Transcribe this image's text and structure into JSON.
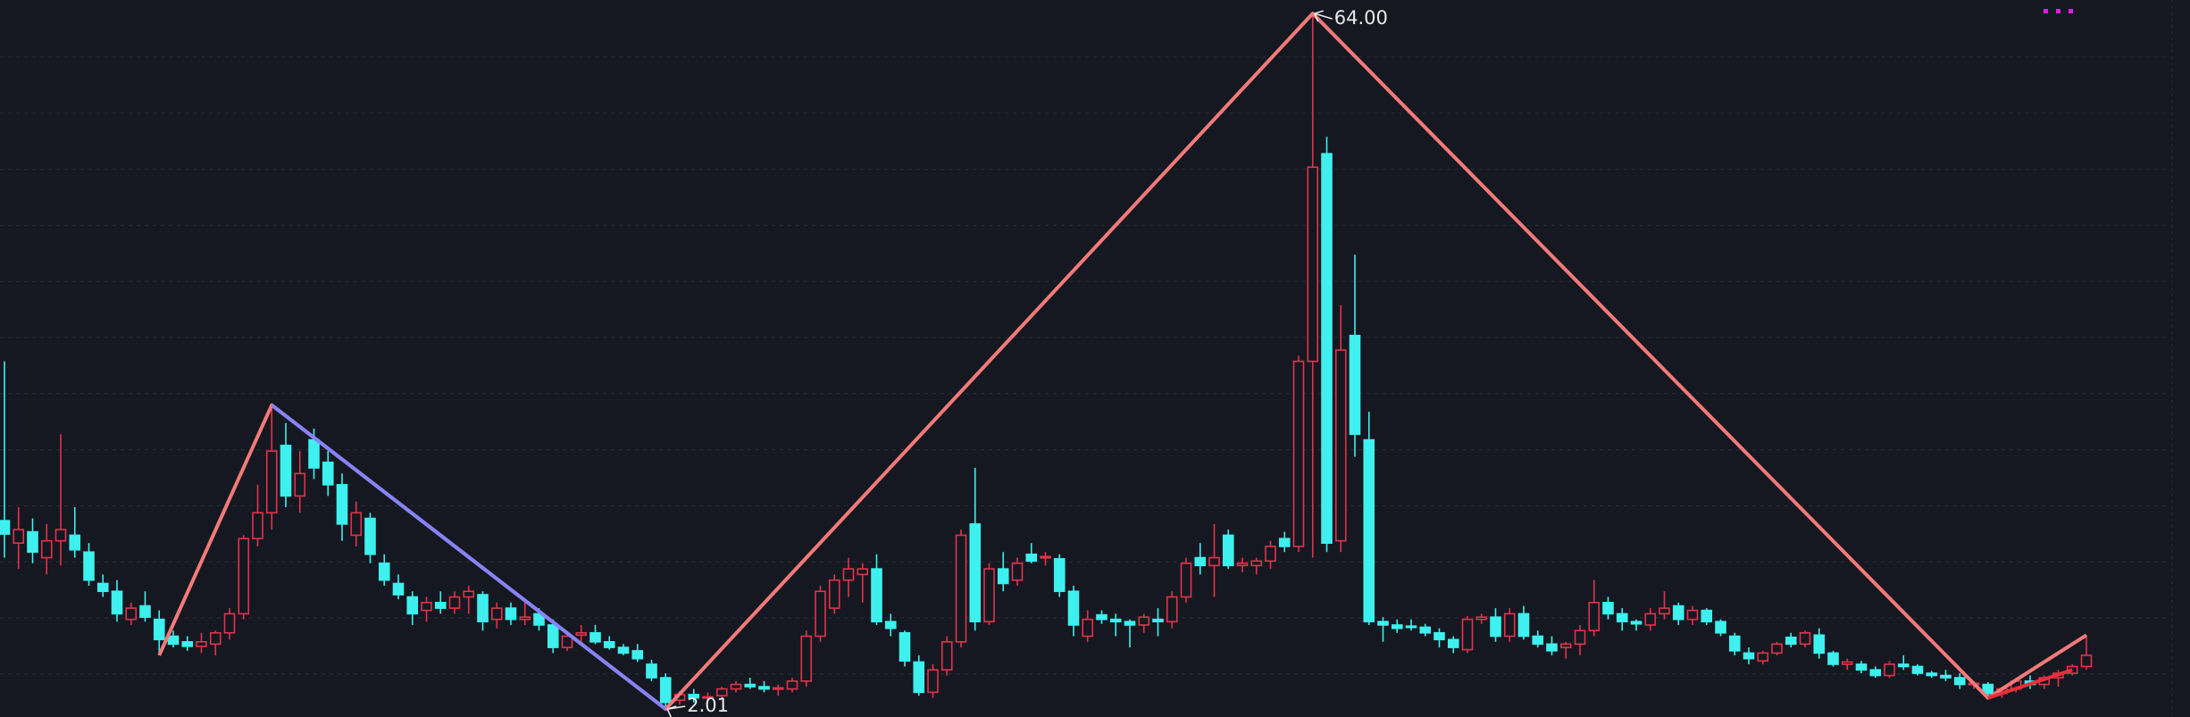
{
  "chart_data": {
    "type": "candlestick",
    "ylim": [
      1.3,
      65.2
    ],
    "up_color": "#e2334b",
    "down_color": "#3ef0ee",
    "candles": [
      [
        18.8,
        33.0,
        15.5,
        17.6
      ],
      [
        16.8,
        20.0,
        14.5,
        18.0
      ],
      [
        17.8,
        19.0,
        15.0,
        16.0
      ],
      [
        15.5,
        18.5,
        14.0,
        17.0
      ],
      [
        17.0,
        26.5,
        14.8,
        18.0
      ],
      [
        17.5,
        20.0,
        15.5,
        16.2
      ],
      [
        16.0,
        16.8,
        13.0,
        13.5
      ],
      [
        13.2,
        14.0,
        12.0,
        12.5
      ],
      [
        12.5,
        13.5,
        9.8,
        10.5
      ],
      [
        10.0,
        11.5,
        9.5,
        11.0
      ],
      [
        11.2,
        12.5,
        9.8,
        10.2
      ],
      [
        10.0,
        10.8,
        6.8,
        8.2
      ],
      [
        8.5,
        9.0,
        7.5,
        7.8
      ],
      [
        8.0,
        8.5,
        7.2,
        7.6
      ],
      [
        7.6,
        8.8,
        7.0,
        8.0
      ],
      [
        7.8,
        9.0,
        6.8,
        8.8
      ],
      [
        8.8,
        11.0,
        8.2,
        10.5
      ],
      [
        10.5,
        17.5,
        10.0,
        17.2
      ],
      [
        17.2,
        22.0,
        16.5,
        19.5
      ],
      [
        19.5,
        29.1,
        18.0,
        25.0
      ],
      [
        25.5,
        27.5,
        20.0,
        21.0
      ],
      [
        21.0,
        25.0,
        19.5,
        23.0
      ],
      [
        26.0,
        27.0,
        22.5,
        23.5
      ],
      [
        24.0,
        25.0,
        21.0,
        22.0
      ],
      [
        22.0,
        23.0,
        17.0,
        18.5
      ],
      [
        17.5,
        20.5,
        16.5,
        19.5
      ],
      [
        19.0,
        19.5,
        15.0,
        15.8
      ],
      [
        15.0,
        15.8,
        13.0,
        13.5
      ],
      [
        13.2,
        14.0,
        11.8,
        12.2
      ],
      [
        12.0,
        12.5,
        9.5,
        10.5
      ],
      [
        10.8,
        12.0,
        9.8,
        11.5
      ],
      [
        11.5,
        12.5,
        10.5,
        11.0
      ],
      [
        11.0,
        12.5,
        10.5,
        12.0
      ],
      [
        12.0,
        13.0,
        10.5,
        12.5
      ],
      [
        12.2,
        12.5,
        9.0,
        9.8
      ],
      [
        10.0,
        11.5,
        9.2,
        11.0
      ],
      [
        11.0,
        11.5,
        9.5,
        10.0
      ],
      [
        10.0,
        11.5,
        9.5,
        10.2
      ],
      [
        10.5,
        11.0,
        9.0,
        9.5
      ],
      [
        9.5,
        10.0,
        7.0,
        7.5
      ],
      [
        7.5,
        8.8,
        7.2,
        8.5
      ],
      [
        8.6,
        9.5,
        8.0,
        8.8
      ],
      [
        8.8,
        9.5,
        7.8,
        8.0
      ],
      [
        8.0,
        8.5,
        7.3,
        7.5
      ],
      [
        7.5,
        7.8,
        6.8,
        7.0
      ],
      [
        7.2,
        7.8,
        6.2,
        6.5
      ],
      [
        6.0,
        6.4,
        4.5,
        4.8
      ],
      [
        4.8,
        5.2,
        2.01,
        2.6
      ],
      [
        2.8,
        3.6,
        2.4,
        3.3
      ],
      [
        3.3,
        3.8,
        2.6,
        3.0
      ],
      [
        3.0,
        3.5,
        2.7,
        3.1
      ],
      [
        3.2,
        4.0,
        3.0,
        3.8
      ],
      [
        3.8,
        4.5,
        3.5,
        4.2
      ],
      [
        4.2,
        4.8,
        3.8,
        4.0
      ],
      [
        4.0,
        4.5,
        3.5,
        3.8
      ],
      [
        3.8,
        4.2,
        3.2,
        3.9
      ],
      [
        3.8,
        4.8,
        3.5,
        4.5
      ],
      [
        4.5,
        9.0,
        4.0,
        8.5
      ],
      [
        8.5,
        13.0,
        8.0,
        12.5
      ],
      [
        11.0,
        14.0,
        10.5,
        13.5
      ],
      [
        13.5,
        15.5,
        12.0,
        14.5
      ],
      [
        14.0,
        15.0,
        11.5,
        14.5
      ],
      [
        14.5,
        15.8,
        9.5,
        9.8
      ],
      [
        9.8,
        10.5,
        8.5,
        9.2
      ],
      [
        8.8,
        9.0,
        5.8,
        6.3
      ],
      [
        6.2,
        6.8,
        3.2,
        3.5
      ],
      [
        3.5,
        6.0,
        3.0,
        5.5
      ],
      [
        5.5,
        8.5,
        5.0,
        8.0
      ],
      [
        8.0,
        18.0,
        7.5,
        17.5
      ],
      [
        18.5,
        23.5,
        9.0,
        9.8
      ],
      [
        9.8,
        15.0,
        9.5,
        14.5
      ],
      [
        14.5,
        16.0,
        12.5,
        13.2
      ],
      [
        13.5,
        15.5,
        13.0,
        15.0
      ],
      [
        15.8,
        16.8,
        15.0,
        15.2
      ],
      [
        15.5,
        16.0,
        14.8,
        15.6
      ],
      [
        15.4,
        15.8,
        12.0,
        12.5
      ],
      [
        12.5,
        13.0,
        8.5,
        9.5
      ],
      [
        8.5,
        10.8,
        8.0,
        10.0
      ],
      [
        10.4,
        10.8,
        9.6,
        10.0
      ],
      [
        10.0,
        10.5,
        8.5,
        9.8
      ],
      [
        9.8,
        10.0,
        7.5,
        9.5
      ],
      [
        9.5,
        10.5,
        8.8,
        10.2
      ],
      [
        10.0,
        11.0,
        8.5,
        9.8
      ],
      [
        9.8,
        12.5,
        9.2,
        12.0
      ],
      [
        12.0,
        15.5,
        11.5,
        15.0
      ],
      [
        15.5,
        16.8,
        14.0,
        14.8
      ],
      [
        14.8,
        18.5,
        12.0,
        15.5
      ],
      [
        17.5,
        18.0,
        14.5,
        14.8
      ],
      [
        14.8,
        15.5,
        14.2,
        15.0
      ],
      [
        14.8,
        15.5,
        14.0,
        15.2
      ],
      [
        15.2,
        17.0,
        14.5,
        16.5
      ],
      [
        17.2,
        17.8,
        16.0,
        16.5
      ],
      [
        16.5,
        33.5,
        16.0,
        33.0
      ],
      [
        33.0,
        64.0,
        15.5,
        50.3
      ],
      [
        51.5,
        53.0,
        16.0,
        16.8
      ],
      [
        17.0,
        38.0,
        16.0,
        34.0
      ],
      [
        35.3,
        42.5,
        24.5,
        26.5
      ],
      [
        26.0,
        28.5,
        9.5,
        9.8
      ],
      [
        9.8,
        10.2,
        8.0,
        9.5
      ],
      [
        9.5,
        10.0,
        8.8,
        9.2
      ],
      [
        9.4,
        10.0,
        9.0,
        9.3
      ],
      [
        9.3,
        9.6,
        8.5,
        8.8
      ],
      [
        8.8,
        9.2,
        7.5,
        8.2
      ],
      [
        8.2,
        8.5,
        7.0,
        7.5
      ],
      [
        7.3,
        10.3,
        7.0,
        10.0
      ],
      [
        10.0,
        10.5,
        9.6,
        10.2
      ],
      [
        10.2,
        11.0,
        8.0,
        8.5
      ],
      [
        8.5,
        11.0,
        8.0,
        10.5
      ],
      [
        10.5,
        11.2,
        8.2,
        8.5
      ],
      [
        8.5,
        9.0,
        7.5,
        7.8
      ],
      [
        7.8,
        8.5,
        6.8,
        7.2
      ],
      [
        7.5,
        8.0,
        6.5,
        7.8
      ],
      [
        7.8,
        9.5,
        6.8,
        9.0
      ],
      [
        9.0,
        13.5,
        8.5,
        11.5
      ],
      [
        11.5,
        12.0,
        10.0,
        10.5
      ],
      [
        10.5,
        11.0,
        9.0,
        9.8
      ],
      [
        9.8,
        10.0,
        9.0,
        9.6
      ],
      [
        9.5,
        11.0,
        9.0,
        10.5
      ],
      [
        10.5,
        12.5,
        10.0,
        11.0
      ],
      [
        11.2,
        11.5,
        9.5,
        10.0
      ],
      [
        10.0,
        11.2,
        9.5,
        10.8
      ],
      [
        10.8,
        11.0,
        9.5,
        9.8
      ],
      [
        9.8,
        10.0,
        8.5,
        8.8
      ],
      [
        8.5,
        8.8,
        6.8,
        7.2
      ],
      [
        7.0,
        7.5,
        6.0,
        6.5
      ],
      [
        6.3,
        7.2,
        6.0,
        7.0
      ],
      [
        7.0,
        8.0,
        6.8,
        7.8
      ],
      [
        8.4,
        8.8,
        7.5,
        7.8
      ],
      [
        7.8,
        9.0,
        7.5,
        8.8
      ],
      [
        8.6,
        9.2,
        6.5,
        7.0
      ],
      [
        7.0,
        7.2,
        5.8,
        6.0
      ],
      [
        6.0,
        6.5,
        5.5,
        6.2
      ],
      [
        6.0,
        6.3,
        5.2,
        5.5
      ],
      [
        5.5,
        5.8,
        4.8,
        5.0
      ],
      [
        5.0,
        6.3,
        4.8,
        6.0
      ],
      [
        6.0,
        6.8,
        5.5,
        5.8
      ],
      [
        5.8,
        6.0,
        5.0,
        5.2
      ],
      [
        5.2,
        5.4,
        4.8,
        5.0
      ],
      [
        5.0,
        5.5,
        4.5,
        4.8
      ],
      [
        4.8,
        5.2,
        3.8,
        4.2
      ],
      [
        4.2,
        4.5,
        3.8,
        4.3
      ],
      [
        4.2,
        4.4,
        3.0,
        3.4
      ],
      [
        3.4,
        4.0,
        3.0,
        3.8
      ],
      [
        3.8,
        4.8,
        3.5,
        4.5
      ],
      [
        4.5,
        5.0,
        3.8,
        4.2
      ],
      [
        4.2,
        5.0,
        3.8,
        4.8
      ],
      [
        4.8,
        5.5,
        4.0,
        5.2
      ],
      [
        5.2,
        6.0,
        5.0,
        5.8
      ],
      [
        5.8,
        8.6,
        5.5,
        6.8
      ]
    ],
    "lines": [
      {
        "color": "#f47a7a",
        "x": [
          11,
          19,
          47,
          93,
          141,
          148
        ],
        "values": [
          6.8,
          29.1,
          2.01,
          64,
          3.0,
          8.6
        ],
        "value_labels": [
          null,
          null,
          "2.01",
          "64.00",
          null,
          null
        ]
      },
      {
        "color": "#8484ff",
        "x": [
          19,
          47
        ],
        "values": [
          29.1,
          2.01
        ]
      },
      {
        "color": "#e8303a",
        "x": [
          141,
          147
        ],
        "values": [
          3.0,
          5.5
        ]
      }
    ]
  }
}
